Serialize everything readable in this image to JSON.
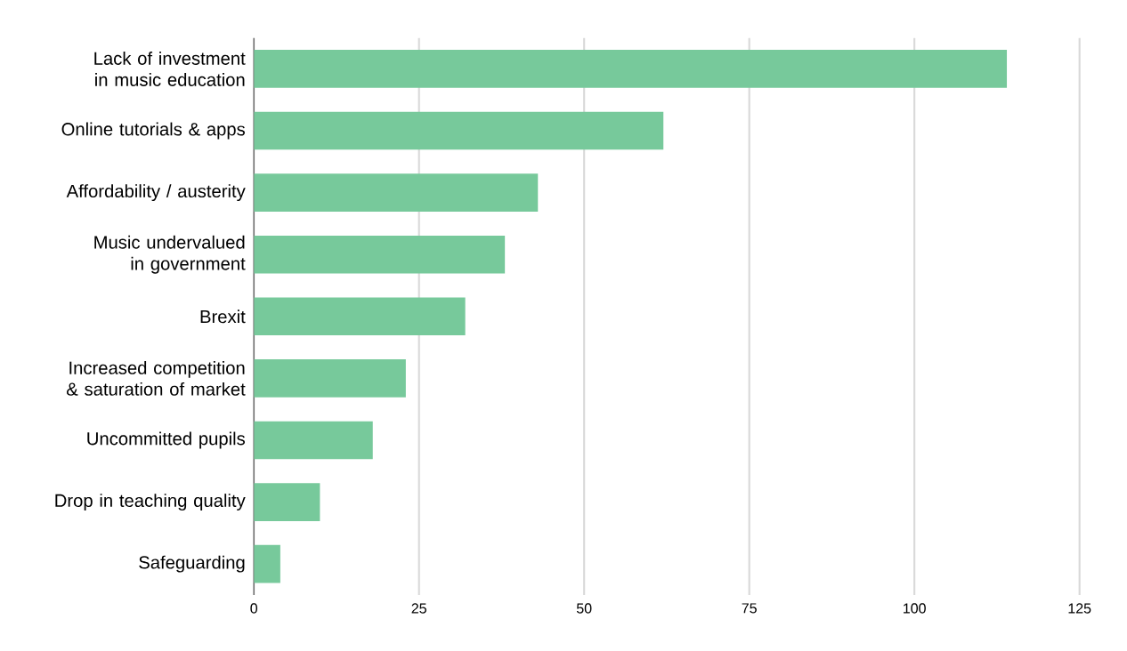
{
  "chart_data": {
    "type": "bar",
    "orientation": "horizontal",
    "categories": [
      "Lack of investment in music education",
      "Online tutorials & apps",
      "Affordability / austerity",
      "Music undervalued in government",
      "Brexit",
      "Increased competition & saturation of market",
      "Uncommitted pupils",
      "Drop in teaching quality",
      "Safeguarding"
    ],
    "values": [
      114,
      62,
      43,
      38,
      32,
      23,
      18,
      10,
      4
    ],
    "color": "#77c99b",
    "xlim": [
      0,
      125
    ],
    "xticks": [
      0,
      25,
      50,
      75,
      100,
      125
    ],
    "grid": "x"
  }
}
